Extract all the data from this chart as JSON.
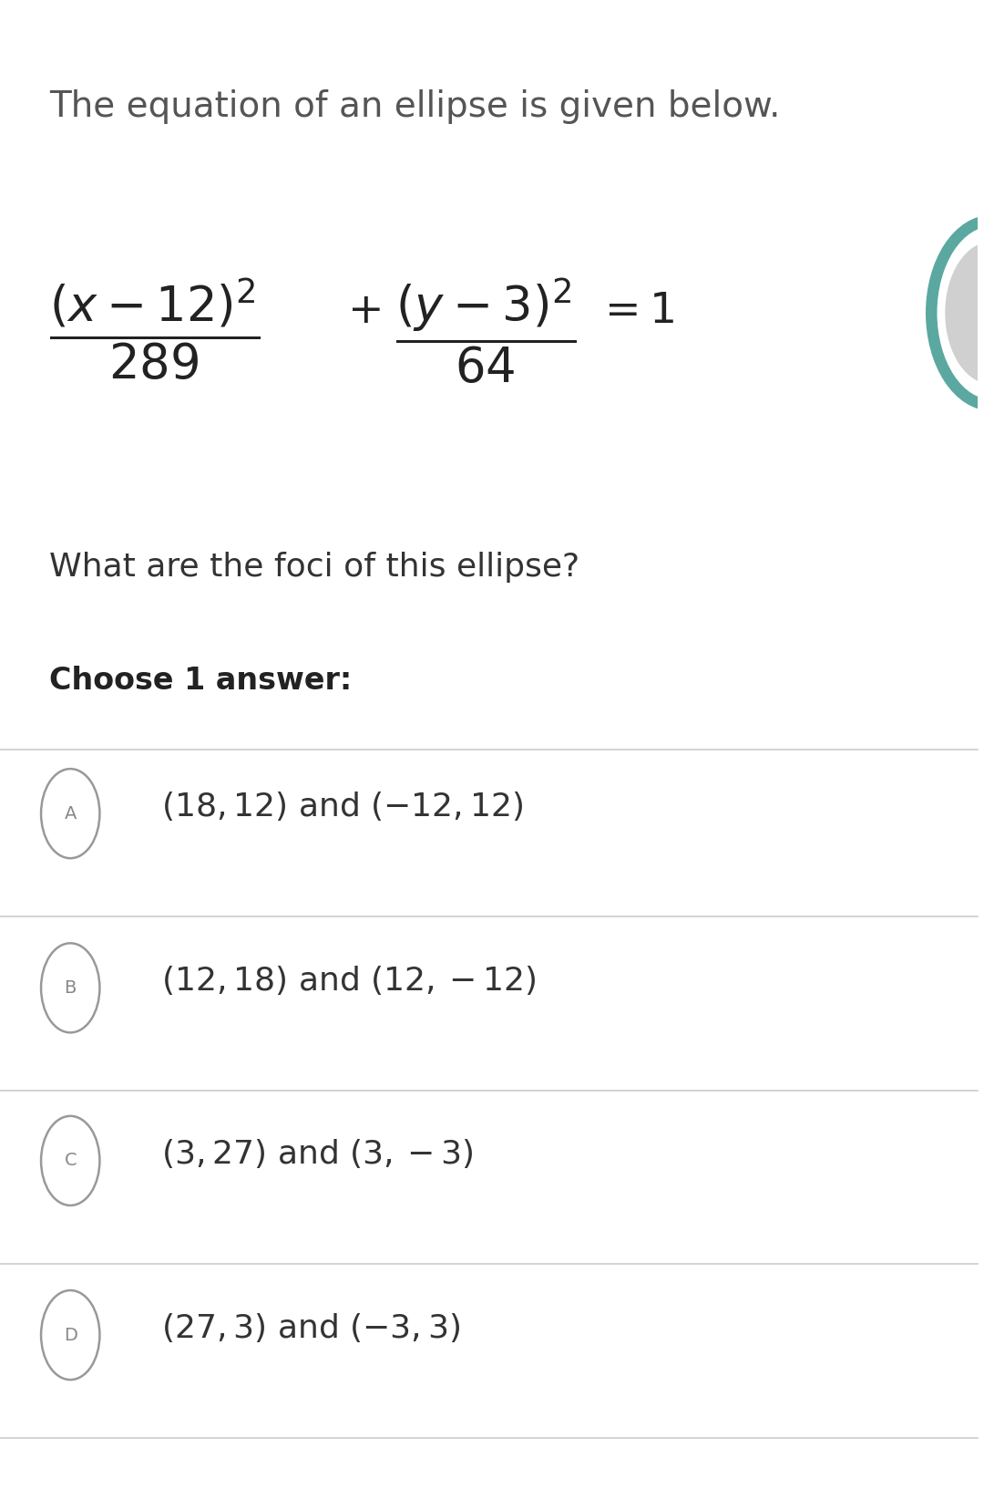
{
  "bg_color": "#ffffff",
  "title_text": "The equation of an ellipse is given below.",
  "title_color": "#555555",
  "title_fontsize": 28,
  "question_text": "What are the foci of this ellipse?",
  "question_color": "#333333",
  "question_fontsize": 26,
  "choose_text": "Choose 1 answer:",
  "choose_color": "#222222",
  "choose_fontsize": 24,
  "option_color": "#333333",
  "option_fontsize": 26,
  "circle_color": "#888888",
  "line_color": "#cccccc",
  "teal_color": "#5ba8a0",
  "figure_width": 10.8,
  "figure_height": 16.34
}
